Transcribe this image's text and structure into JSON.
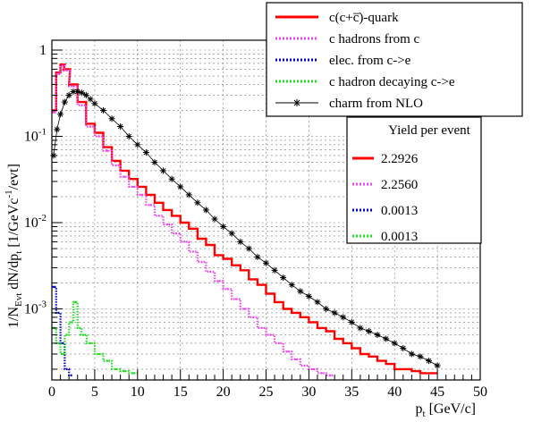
{
  "chart_data": {
    "type": "line",
    "title": "",
    "xlabel": "p_t [GeV/c]",
    "ylabel": "1/N_Evt dN/dp_t [1/GeVc^-1/evt]",
    "xlim": [
      0,
      50
    ],
    "ylim": [
      0.00015,
      1.3
    ],
    "log_y": true,
    "grid": true,
    "x_ticks": [
      "0",
      "5",
      "10",
      "15",
      "20",
      "25",
      "30",
      "35",
      "40",
      "45",
      "50"
    ],
    "y_ticks": [
      {
        "mantissa": "10",
        "exp": "-3"
      },
      {
        "mantissa": "10",
        "exp": "-2"
      },
      {
        "mantissa": "10",
        "exp": "-1"
      },
      {
        "mantissa": "1",
        "exp": ""
      }
    ],
    "legend": {
      "position": "top-right",
      "entries": [
        {
          "label": "c(c+c̅)-quark",
          "color": "#ff0000",
          "style": "solid"
        },
        {
          "label": "c hadrons from c",
          "color": "#ee44ee",
          "style": "dotted"
        },
        {
          "label": "elec. from c->e",
          "color": "#0000cc",
          "style": "dotted"
        },
        {
          "label": "c hadron decaying c->e",
          "color": "#22dd22",
          "style": "dotted"
        },
        {
          "label": "charm from NLO",
          "color": "#000000",
          "style": "star"
        }
      ]
    },
    "yield_box": {
      "title": "Yield per event",
      "entries": [
        {
          "value": "2.2926",
          "color": "#ff0000",
          "style": "solid"
        },
        {
          "value": "2.2560",
          "color": "#ee44ee",
          "style": "dotted"
        },
        {
          "value": "0.0013",
          "color": "#0000cc",
          "style": "dotted"
        },
        {
          "value": "0.0013",
          "color": "#22dd22",
          "style": "dotted"
        }
      ]
    },
    "series": [
      {
        "name": "c(c+c̅)-quark",
        "color": "#ff0000",
        "x": [
          0.25,
          0.75,
          1.25,
          1.75,
          2.5,
          3.5,
          4.5,
          5.5,
          6.5,
          7.5,
          8.5,
          9.5,
          10.5,
          11.5,
          12.5,
          13.5,
          14.5,
          15.5,
          16.5,
          17.5,
          18.5,
          19.5,
          20.5,
          21.5,
          22.5,
          23.5,
          24.5,
          25.5,
          26.5,
          27.5,
          28.5,
          29.5,
          30.5,
          31.5,
          32.5,
          33.5,
          34.5,
          35.5,
          36.5,
          37.5,
          38.5,
          39.5,
          40.5,
          41.5,
          42.5,
          43.5,
          44.5
        ],
        "y": [
          0.2,
          0.55,
          0.68,
          0.6,
          0.4,
          0.25,
          0.14,
          0.11,
          0.075,
          0.052,
          0.04,
          0.032,
          0.026,
          0.021,
          0.017,
          0.014,
          0.012,
          0.01,
          0.0085,
          0.0065,
          0.0055,
          0.0042,
          0.0038,
          0.0032,
          0.0028,
          0.0022,
          0.0019,
          0.0015,
          0.0012,
          0.001,
          0.0009,
          0.0008,
          0.0007,
          0.0006,
          0.00055,
          0.00045,
          0.0004,
          0.00035,
          0.0003,
          0.00028,
          0.00025,
          0.00023,
          0.0002,
          0.0002,
          0.00019,
          0.00018,
          0.00018
        ]
      },
      {
        "name": "c hadrons from c",
        "color": "#ee44ee",
        "x": [
          0.25,
          0.75,
          1.25,
          1.75,
          2.5,
          3.5,
          4.5,
          5.5,
          6.5,
          7.5,
          8.5,
          9.5,
          10.5,
          11.5,
          12.5,
          13.5,
          14.5,
          15.5,
          16.5,
          17.5,
          18.5,
          19.5,
          20.5,
          21.5,
          22.5,
          23.5,
          24.5,
          25.5,
          26.5,
          27.5,
          28.5,
          29.5,
          30.5,
          31.5,
          32.5
        ],
        "y": [
          0.19,
          0.53,
          0.66,
          0.58,
          0.38,
          0.23,
          0.13,
          0.1,
          0.068,
          0.046,
          0.034,
          0.026,
          0.021,
          0.016,
          0.012,
          0.0095,
          0.0075,
          0.006,
          0.0046,
          0.0035,
          0.0027,
          0.0021,
          0.0017,
          0.0013,
          0.001,
          0.0008,
          0.0006,
          0.0005,
          0.0004,
          0.00032,
          0.00026,
          0.00022,
          0.0002,
          0.00018,
          0.00017
        ]
      },
      {
        "name": "elec. from c->e",
        "color": "#0000cc",
        "x": [
          0.25,
          0.75,
          1.25,
          1.75,
          2.25
        ],
        "y": [
          0.0018,
          0.0009,
          0.0004,
          0.0002,
          0.00017
        ]
      },
      {
        "name": "c hadron decaying c->e",
        "color": "#22dd22",
        "x": [
          0.25,
          0.75,
          1.25,
          1.75,
          2.25,
          2.75,
          3.25,
          3.75,
          4.5,
          5.5,
          6.5,
          7.5,
          8.5,
          9.5
        ],
        "y": [
          0.0006,
          0.0004,
          0.0003,
          0.0005,
          0.0007,
          0.0012,
          0.0006,
          0.0005,
          0.0004,
          0.0003,
          0.00025,
          0.0002,
          0.00019,
          0.00018
        ]
      },
      {
        "name": "charm from NLO",
        "color": "#000000",
        "x": [
          0.2,
          0.6,
          1,
          1.5,
          2,
          2.5,
          3,
          3.5,
          4,
          4.5,
          5,
          6,
          7,
          8,
          9,
          10,
          11,
          12,
          13,
          14,
          15,
          16,
          17,
          18,
          19,
          20,
          21,
          22,
          23,
          24,
          25,
          26,
          27,
          28,
          29,
          30,
          31,
          32,
          33,
          34,
          35,
          36,
          37,
          38,
          39,
          40,
          41,
          42,
          43,
          44,
          45
        ],
        "y": [
          0.06,
          0.12,
          0.18,
          0.25,
          0.3,
          0.33,
          0.33,
          0.32,
          0.3,
          0.27,
          0.24,
          0.2,
          0.16,
          0.13,
          0.1,
          0.08,
          0.065,
          0.05,
          0.04,
          0.032,
          0.026,
          0.021,
          0.017,
          0.014,
          0.011,
          0.009,
          0.0075,
          0.006,
          0.005,
          0.004,
          0.0034,
          0.0028,
          0.0023,
          0.0019,
          0.0016,
          0.0014,
          0.0012,
          0.001,
          0.0009,
          0.0008,
          0.0007,
          0.0006,
          0.00055,
          0.0005,
          0.00045,
          0.0004,
          0.00035,
          0.0003,
          0.00028,
          0.00025,
          0.00022
        ]
      }
    ]
  }
}
